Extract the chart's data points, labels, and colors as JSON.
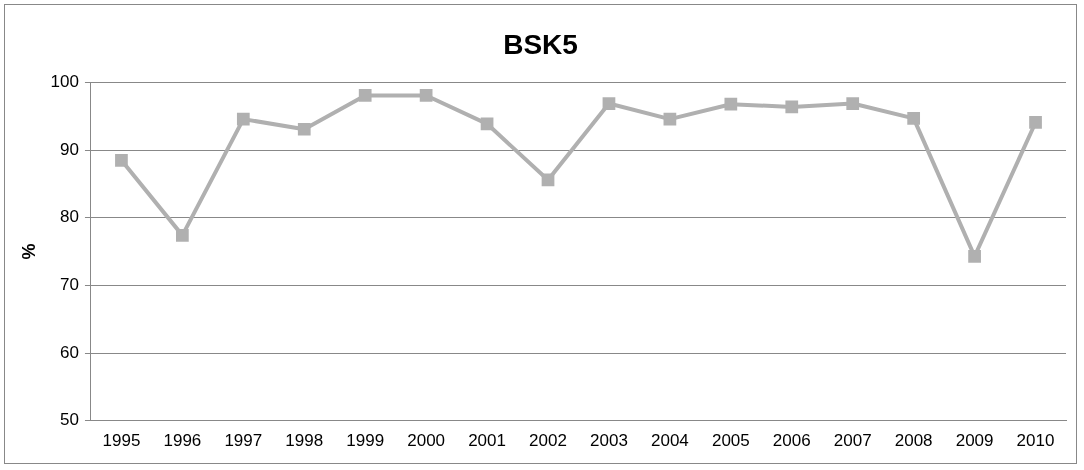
{
  "chart_data": {
    "type": "line",
    "title": "BSK5",
    "ylabel": "%",
    "categories": [
      "1995",
      "1996",
      "1997",
      "1998",
      "1999",
      "2000",
      "2001",
      "2002",
      "2003",
      "2004",
      "2005",
      "2006",
      "2007",
      "2008",
      "2009",
      "2010"
    ],
    "series": [
      {
        "color": "#b0b0b0",
        "values": [
          88.5,
          77.4,
          94.6,
          93.1,
          98.1,
          98.1,
          93.9,
          85.6,
          96.9,
          94.6,
          96.8,
          96.4,
          96.9,
          94.7,
          74.3,
          94.1
        ]
      }
    ],
    "ylim": [
      50,
      100
    ],
    "yticks": [
      50,
      60,
      70,
      80,
      90,
      100
    ],
    "grid": "y",
    "legend": false,
    "marker": "square",
    "line_style": "solid"
  }
}
